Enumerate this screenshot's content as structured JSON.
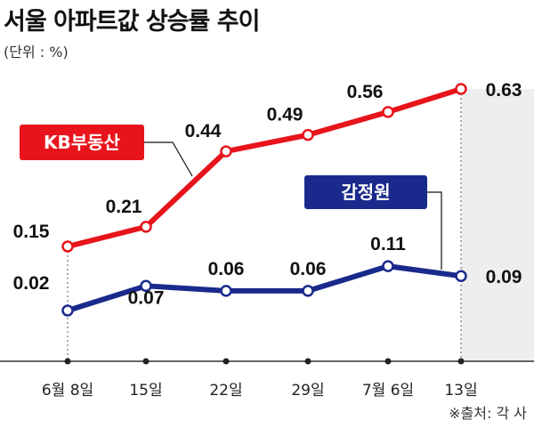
{
  "title": "서울 아파트값 상승률 추이",
  "unit": "(단위 : %)",
  "source": "※출처: 각 사",
  "chart_data": {
    "type": "line",
    "categories": [
      "6월 8일",
      "15일",
      "22일",
      "29일",
      "7월 6일",
      "13일"
    ],
    "series": [
      {
        "name": "KB부동산",
        "color": "#e8141c",
        "values": [
          0.15,
          0.21,
          0.44,
          0.49,
          0.56,
          0.63
        ]
      },
      {
        "name": "감정원",
        "color": "#1a2a8c",
        "values": [
          0.02,
          0.07,
          0.06,
          0.06,
          0.11,
          0.09
        ]
      }
    ],
    "value_labels": [
      [
        "0.15",
        "0.21",
        "0.44",
        "0.49",
        "0.56",
        "0.63"
      ],
      [
        "0.02",
        "0.07",
        "0.06",
        "0.06",
        "0.11",
        "0.09"
      ]
    ],
    "grid": false,
    "legend": "callout labels on lines"
  }
}
